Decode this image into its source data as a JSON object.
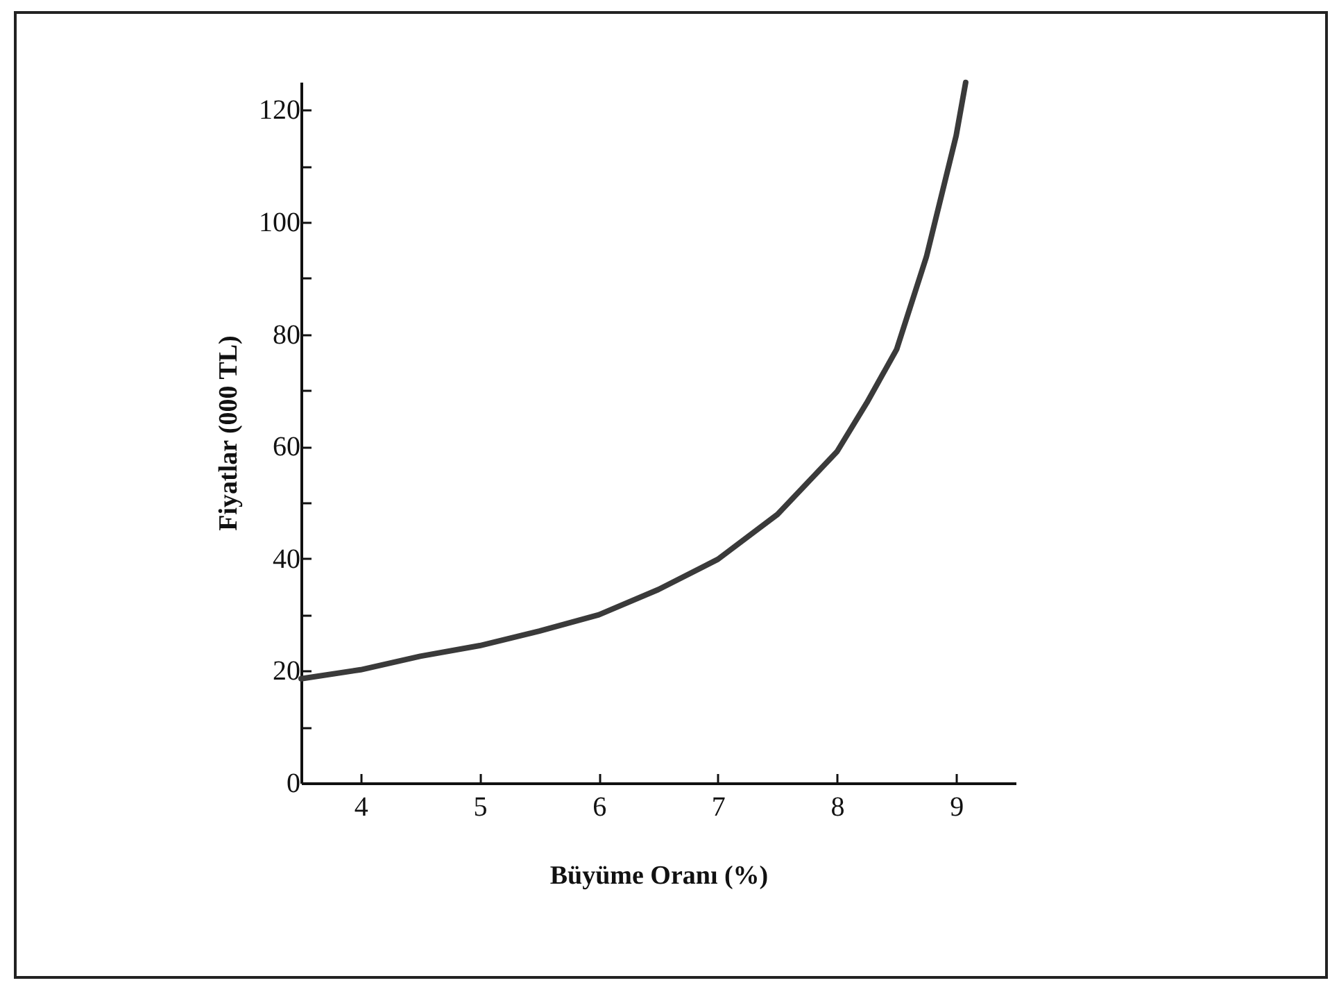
{
  "chart_data": {
    "type": "line",
    "xlabel": "Büyüme Oranı (%)",
    "ylabel": "Fiyatlar (000 TL)",
    "x": [
      3.5,
      4,
      4.5,
      5,
      5.5,
      6,
      6.5,
      7,
      7.5,
      8,
      8.25,
      8.5,
      8.75,
      9,
      9.08
    ],
    "series": [
      {
        "color": "#3a3a3a",
        "values": [
          18.6,
          20.2,
          22.6,
          24.5,
          27.1,
          30.0,
          34.5,
          39.9,
          47.9,
          59.1,
          67.8,
          77.3,
          93.8,
          115.4,
          124.9
        ]
      }
    ],
    "xlim": [
      3.5,
      9.5
    ],
    "ylim": [
      0,
      125
    ],
    "xticks": [
      4,
      5,
      6,
      7,
      8,
      9
    ],
    "yticks": [
      0,
      {
        "value": 10,
        "label": null
      },
      20,
      {
        "value": 30,
        "label": null
      },
      40,
      {
        "value": 50,
        "label": null
      },
      60,
      {
        "value": 70,
        "label": null
      },
      80,
      {
        "value": 90,
        "label": null
      },
      100,
      {
        "value": 110,
        "label": null
      },
      120
    ],
    "grid": false,
    "legend": false,
    "marker": "none",
    "line_style": "solid"
  }
}
